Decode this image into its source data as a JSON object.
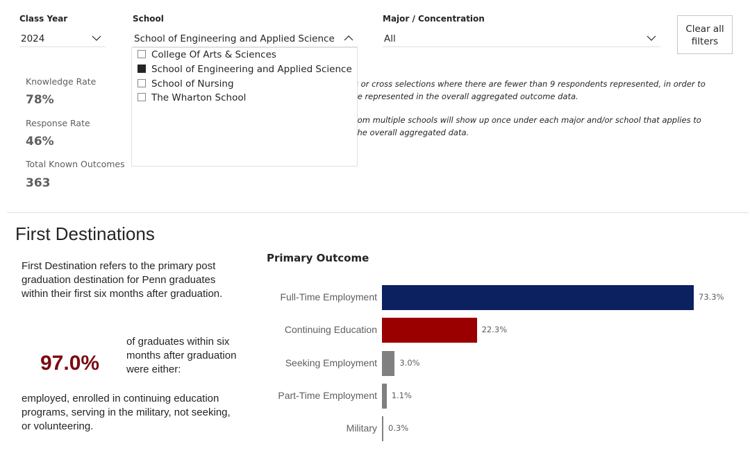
{
  "filters": {
    "class_year": {
      "label": "Class Year",
      "value": "2024"
    },
    "school": {
      "label": "School",
      "value": "School of Engineering and Applied Science",
      "options": [
        {
          "label": "College Of Arts & Sciences",
          "checked": false
        },
        {
          "label": "School of Engineering and Applied Science",
          "checked": true
        },
        {
          "label": "School of Nursing",
          "checked": false
        },
        {
          "label": "The Wharton School",
          "checked": false
        }
      ]
    },
    "major": {
      "label": "Major / Concentration",
      "value": "All"
    },
    "clear_button": {
      "line1": "Clear all",
      "line2": "filters"
    }
  },
  "kpis": [
    {
      "label": "Knowledge Rate",
      "value": "78%"
    },
    {
      "label": "Response Rate",
      "value": "46%"
    },
    {
      "label": "Total Known Outcomes",
      "value": "363"
    }
  ],
  "notes": {
    "line1": "s or cross selections where there are fewer than 9 respondents represented, in order to",
    "line2": "re represented in the overall aggregated outcome data.",
    "line3": "rom multiple schools will show up once under each major and/or school that applies to",
    "line4": "the overall aggregated data."
  },
  "section": {
    "title": "First Destinations",
    "definition": [
      "First Destination refers to the primary post",
      "graduation destination for Penn graduates",
      "within their first six months after graduation."
    ],
    "big_percent": "97.0%",
    "pct_caption": [
      "of graduates within six",
      "months after graduation",
      "were either:"
    ],
    "explanation": [
      "employed, enrolled in continuing education",
      "programs, serving in the military, not seeking,",
      "or volunteering."
    ]
  },
  "chart_data": {
    "type": "bar",
    "orientation": "horizontal",
    "title": "Primary Outcome",
    "categories": [
      "Full-Time Employment",
      "Continuing Education",
      "Seeking Employment",
      "Part-Time Employment",
      "Military"
    ],
    "values": [
      73.3,
      22.3,
      3.0,
      1.1,
      0.3
    ],
    "value_labels": [
      "73.3%",
      "22.3%",
      "3.0%",
      "1.1%",
      "0.3%"
    ],
    "colors": [
      "#0b2160",
      "#9b0000",
      "#808080",
      "#808080",
      "#808080"
    ],
    "xlim": [
      0,
      73.3
    ],
    "grid": false,
    "legend": "none"
  }
}
